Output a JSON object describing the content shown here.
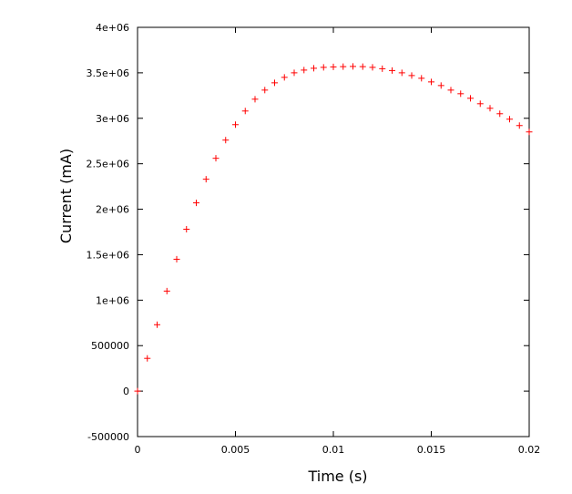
{
  "chart_data": {
    "type": "scatter",
    "title": "",
    "xlabel": "Time (s)",
    "ylabel": "Current (mA)",
    "xlim": [
      0,
      0.02
    ],
    "ylim": [
      -500000,
      4000000
    ],
    "x_ticks": [
      0,
      0.005,
      0.01,
      0.015,
      0.02
    ],
    "x_tick_labels": [
      "0",
      "0.005",
      "0.01",
      "0.015",
      "0.02"
    ],
    "y_ticks": [
      -500000,
      0,
      500000,
      1000000,
      1500000,
      2000000,
      2500000,
      3000000,
      3500000,
      4000000
    ],
    "y_tick_labels": [
      "-500000",
      "0",
      "500000",
      "1e+06",
      "1.5e+06",
      "2e+06",
      "2.5e+06",
      "3e+06",
      "3.5e+06",
      "4e+06"
    ],
    "grid": false,
    "legend": "none",
    "marker": "plus",
    "series_color": "#ff0000",
    "x": [
      0,
      0.0005,
      0.001,
      0.0015,
      0.002,
      0.0025,
      0.003,
      0.0035,
      0.004,
      0.0045,
      0.005,
      0.0055,
      0.006,
      0.0065,
      0.007,
      0.0075,
      0.008,
      0.0085,
      0.009,
      0.0095,
      0.01,
      0.0105,
      0.011,
      0.0115,
      0.012,
      0.0125,
      0.013,
      0.0135,
      0.014,
      0.0145,
      0.015,
      0.0155,
      0.016,
      0.0165,
      0.017,
      0.0175,
      0.018,
      0.0185,
      0.019,
      0.0195,
      0.02
    ],
    "y": [
      0,
      360000,
      730000,
      1100000,
      1450000,
      1780000,
      2070000,
      2330000,
      2560000,
      2760000,
      2930000,
      3080000,
      3210000,
      3310000,
      3390000,
      3450000,
      3500000,
      3530000,
      3550000,
      3560000,
      3565000,
      3568000,
      3570000,
      3568000,
      3560000,
      3545000,
      3525000,
      3500000,
      3470000,
      3440000,
      3400000,
      3360000,
      3310000,
      3270000,
      3220000,
      3160000,
      3110000,
      3050000,
      2990000,
      2920000,
      2850000
    ]
  }
}
